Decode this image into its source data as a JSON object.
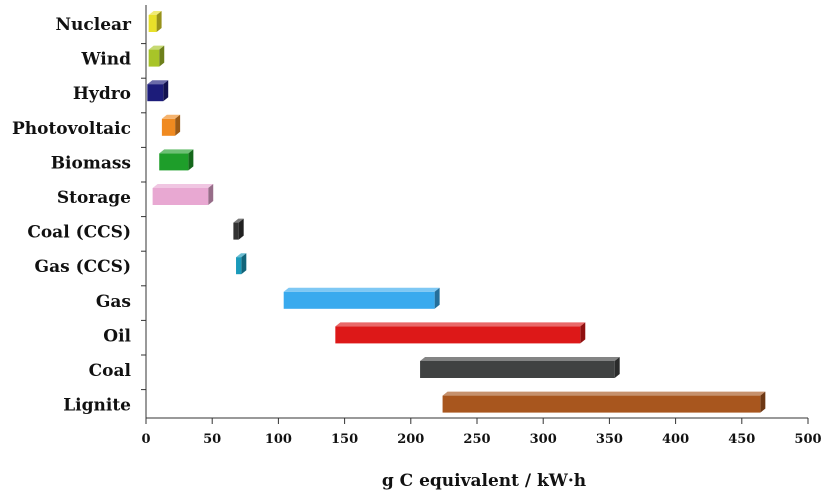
{
  "chart_data": {
    "type": "bar",
    "orientation": "horizontal",
    "subtype": "floating-range",
    "title": "",
    "xlabel": "g C equivalent / kW·h",
    "ylabel": "",
    "xlim": [
      0,
      500
    ],
    "xticks": [
      0,
      50,
      100,
      150,
      200,
      250,
      300,
      350,
      400,
      450,
      500
    ],
    "grid": false,
    "legend": "none",
    "categories": [
      "Nuclear",
      "Wind",
      "Hydro",
      "Photovoltaic",
      "Biomass",
      "Storage",
      "Coal (CCS)",
      "Gas (CCS)",
      "Gas",
      "Oil",
      "Coal",
      "Lignite"
    ],
    "ranges": [
      {
        "min": 2,
        "max": 8,
        "color": "#e8e02a"
      },
      {
        "min": 2,
        "max": 10,
        "color": "#a8c428"
      },
      {
        "min": 1,
        "max": 13,
        "color": "#1c1c7a"
      },
      {
        "min": 12,
        "max": 22,
        "color": "#f08a20"
      },
      {
        "min": 10,
        "max": 32,
        "color": "#1e9e2a"
      },
      {
        "min": 5,
        "max": 47,
        "color": "#e8a8d2"
      },
      {
        "min": 66,
        "max": 70,
        "color": "#333333"
      },
      {
        "min": 68,
        "max": 72,
        "color": "#1a9aba"
      },
      {
        "min": 104,
        "max": 218,
        "color": "#39aaee"
      },
      {
        "min": 143,
        "max": 328,
        "color": "#dd1818"
      },
      {
        "min": 207,
        "max": 354,
        "color": "#404242"
      },
      {
        "min": 224,
        "max": 464,
        "color": "#a8561e"
      }
    ]
  }
}
